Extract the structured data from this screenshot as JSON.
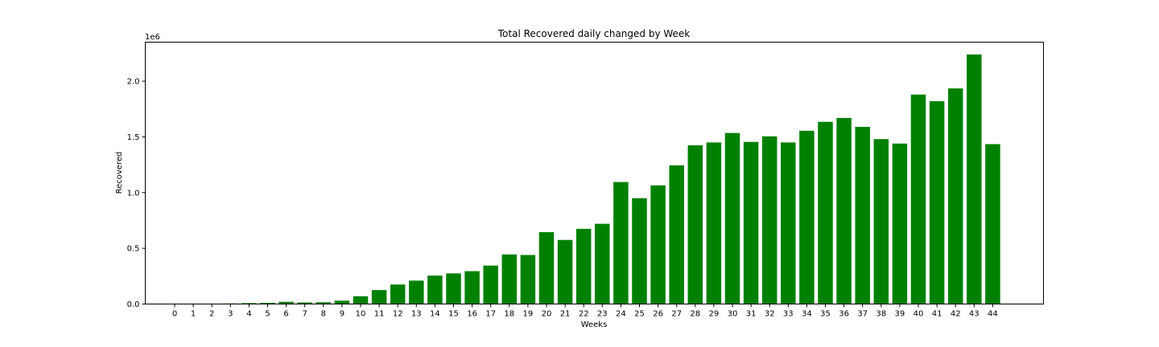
{
  "chart_data": {
    "type": "bar",
    "title": "Total Recovered daily changed by Week",
    "xlabel": "Weeks",
    "ylabel": "Recovered",
    "y_multiplier_label": "1e6",
    "ylim": [
      0,
      2350000
    ],
    "yticks": [
      0,
      500000,
      1000000,
      1500000,
      2000000
    ],
    "ytick_labels": [
      "0.0",
      "0.5",
      "1.0",
      "1.5",
      "2.0"
    ],
    "bar_color": "#008000",
    "grid": false,
    "categories": [
      "0",
      "1",
      "2",
      "3",
      "4",
      "5",
      "6",
      "7",
      "8",
      "9",
      "10",
      "11",
      "12",
      "13",
      "14",
      "15",
      "16",
      "17",
      "18",
      "19",
      "20",
      "21",
      "22",
      "23",
      "24",
      "25",
      "26",
      "27",
      "28",
      "29",
      "30",
      "31",
      "32",
      "33",
      "34",
      "35",
      "36",
      "37",
      "38",
      "39",
      "40",
      "41",
      "42",
      "43",
      "44"
    ],
    "values": [
      800,
      1500,
      2500,
      5000,
      8000,
      11000,
      20000,
      14000,
      16000,
      30000,
      70000,
      125000,
      175000,
      210000,
      255000,
      275000,
      295000,
      345000,
      445000,
      440000,
      645000,
      575000,
      675000,
      720000,
      1095000,
      950000,
      1065000,
      1245000,
      1425000,
      1450000,
      1535000,
      1455000,
      1505000,
      1450000,
      1555000,
      1635000,
      1670000,
      1590000,
      1480000,
      1440000,
      1880000,
      1820000,
      1935000,
      2240000,
      1435000
    ]
  }
}
